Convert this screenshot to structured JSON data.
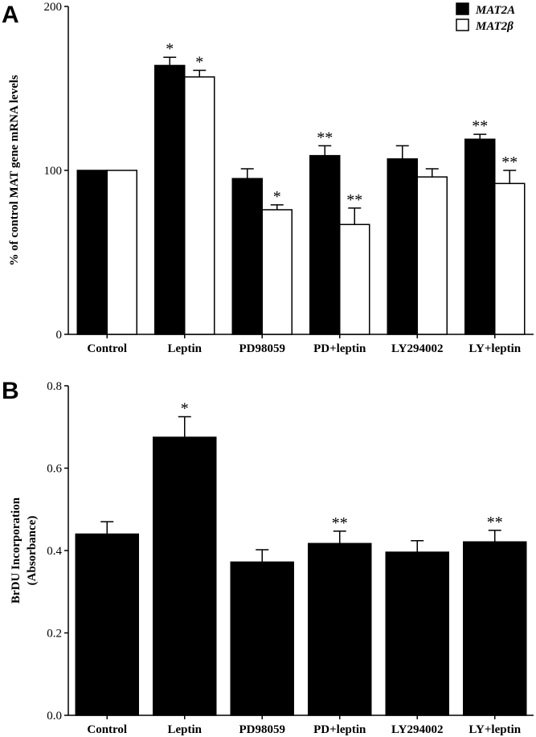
{
  "chart_data": [
    {
      "panel": "A",
      "type": "bar",
      "categories": [
        "Control",
        "Leptin",
        "PD98059",
        "PD+leptin",
        "LY294002",
        "LY+leptin"
      ],
      "ylabel": "% of control MAT gene mRNA levels",
      "ylim": [
        0,
        200
      ],
      "yticks": [
        "0",
        "100",
        "200"
      ],
      "legend_position": "top-right",
      "series": [
        {
          "name": "MAT2A",
          "color": "#000000",
          "values": [
            100,
            164,
            95,
            109,
            107,
            119
          ],
          "errors": [
            0,
            5,
            6,
            6,
            8,
            3
          ],
          "significance": [
            "",
            "*",
            "",
            "**",
            "",
            "**"
          ]
        },
        {
          "name": "MAT2β",
          "color": "#ffffff",
          "values": [
            100,
            157,
            76,
            67,
            96,
            92
          ],
          "errors": [
            0,
            4,
            3,
            10,
            5,
            8
          ],
          "significance": [
            "",
            "*",
            "*",
            "**",
            "",
            "**"
          ]
        }
      ]
    },
    {
      "panel": "B",
      "type": "bar",
      "categories": [
        "Control",
        "Leptin",
        "PD98059",
        "PD+leptin",
        "LY294002",
        "LY+leptin"
      ],
      "ylabel_line1": "BrDU Incorporation",
      "ylabel_line2": "(Absorbance)",
      "ylim": [
        0,
        0.8
      ],
      "yticks": [
        "0.0",
        "0.2",
        "0.4",
        "0.6",
        "0.8"
      ],
      "series": [
        {
          "color": "#000000",
          "values": [
            0.44,
            0.675,
            0.372,
            0.417,
            0.396,
            0.421
          ],
          "errors": [
            0.03,
            0.05,
            0.03,
            0.03,
            0.028,
            0.028
          ],
          "significance": [
            "",
            "*",
            "",
            "**",
            "",
            "**"
          ]
        }
      ]
    }
  ]
}
